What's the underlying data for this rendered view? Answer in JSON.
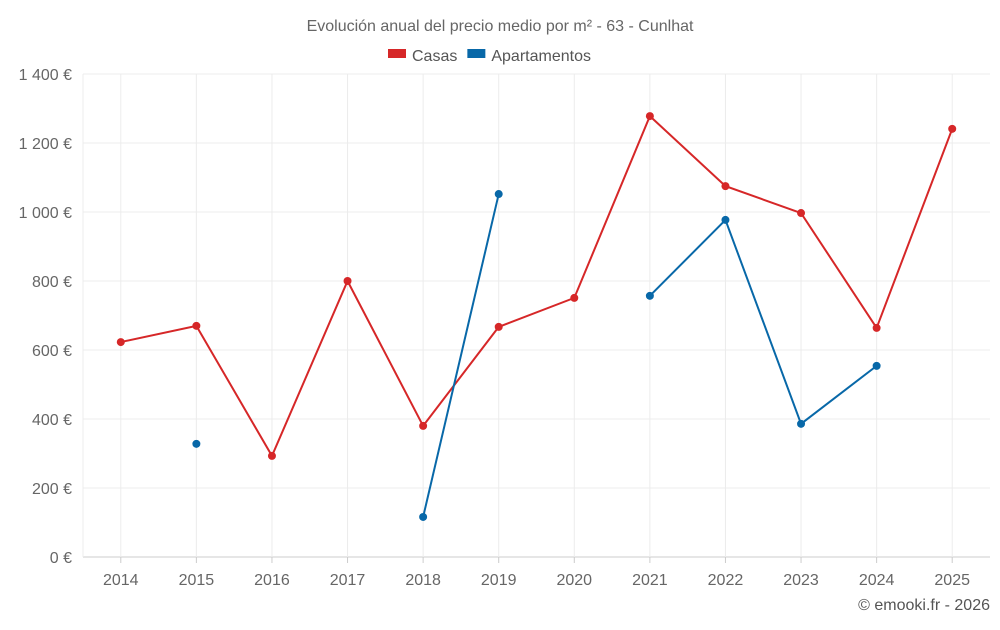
{
  "chart_data": {
    "type": "line",
    "title": "Evolución anual del precio medio por m² - 63 - Cunlhat",
    "xlabel": "",
    "ylabel": "",
    "categories": [
      "2014",
      "2015",
      "2016",
      "2017",
      "2018",
      "2019",
      "2020",
      "2021",
      "2022",
      "2023",
      "2024",
      "2025"
    ],
    "y_ticks": [
      "0 €",
      "200 €",
      "400 €",
      "600 €",
      "800 €",
      "1 000 €",
      "1 200 €",
      "1 400 €"
    ],
    "ylim": [
      0,
      1400
    ],
    "grid": true,
    "legend_position": "top-center",
    "series": [
      {
        "name": "Casas",
        "color": "#d62728",
        "values": [
          623,
          670,
          293,
          800,
          380,
          667,
          751,
          1278,
          1075,
          997,
          664,
          1241
        ]
      },
      {
        "name": "Apartamentos",
        "color": "#0868a8",
        "values": [
          null,
          328,
          null,
          null,
          116,
          1052,
          null,
          757,
          977,
          386,
          554,
          null
        ]
      }
    ],
    "credit": "© emooki.fr - 2026"
  }
}
